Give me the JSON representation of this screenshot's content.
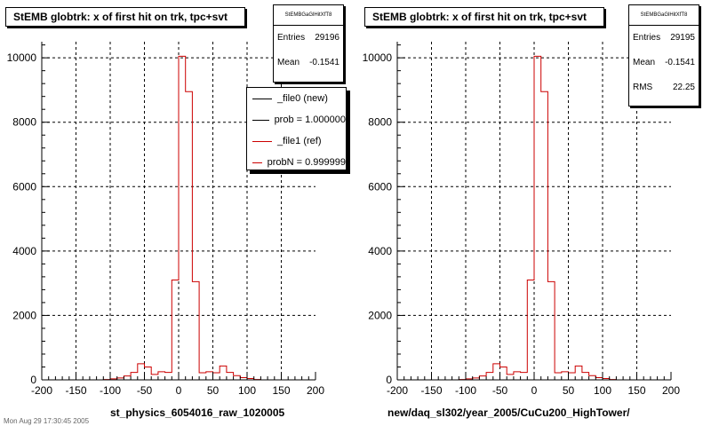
{
  "chart_data": [
    {
      "type": "histogram",
      "title": "StEMB globtrk: x of first hit on trk, tpc+svt",
      "xlabel": "st_physics_6054016_raw_1020005",
      "ylabel": "",
      "xlim": [
        -200,
        200
      ],
      "ylim": [
        0,
        10500
      ],
      "xticks": [
        -200,
        -150,
        -100,
        -50,
        0,
        50,
        100,
        150,
        200
      ],
      "yticks": [
        0,
        2000,
        4000,
        6000,
        8000,
        10000
      ],
      "grid": true,
      "stats": {
        "name": "StEMBGaGlHitXfT8",
        "entries_label": "Entries",
        "entries": "29196",
        "mean_label": "Mean",
        "mean": "-0.1541"
      },
      "legend": {
        "placement": "top-right",
        "entries": [
          {
            "label": "_file0 (new)",
            "color": "#000000"
          },
          {
            "label": "prob = 1.000000",
            "color": "#000000"
          },
          {
            "label": "_file1 (ref)",
            "color": "#cc0000"
          },
          {
            "label": "probN = 0.999999",
            "color": "#cc0000"
          }
        ]
      },
      "bin_width": 10,
      "series": [
        {
          "name": "_file1 (ref)",
          "color": "#cc0000",
          "bins_x_low": [
            -200,
            -190,
            -180,
            -170,
            -160,
            -150,
            -140,
            -130,
            -120,
            -110,
            -100,
            -90,
            -80,
            -70,
            -60,
            -50,
            -40,
            -30,
            -20,
            -10,
            0,
            10,
            20,
            30,
            40,
            50,
            60,
            70,
            80,
            90,
            100,
            110,
            120,
            130,
            140,
            150,
            160,
            170,
            180,
            190
          ],
          "values": [
            0,
            0,
            0,
            0,
            0,
            0,
            0,
            0,
            0,
            10,
            30,
            60,
            120,
            230,
            500,
            400,
            170,
            250,
            230,
            3100,
            10050,
            8950,
            3050,
            220,
            250,
            220,
            430,
            230,
            130,
            70,
            40,
            10,
            0,
            0,
            0,
            0,
            0,
            0,
            0,
            0
          ]
        }
      ]
    },
    {
      "type": "histogram",
      "title": "StEMB globtrk: x of first hit on trk, tpc+svt",
      "xlabel": "new/daq_sl302/year_2005/CuCu200_HighTower/",
      "ylabel": "",
      "xlim": [
        -200,
        200
      ],
      "ylim": [
        0,
        10500
      ],
      "xticks": [
        -200,
        -150,
        -100,
        -50,
        0,
        50,
        100,
        150,
        200
      ],
      "yticks": [
        0,
        2000,
        4000,
        6000,
        8000,
        10000
      ],
      "grid": true,
      "stats": {
        "name": "StEMBGaGlHitXfT8",
        "entries_label": "Entries",
        "entries": "29195",
        "mean_label": "Mean",
        "mean": "-0.1541",
        "rms_label": "RMS",
        "rms": "22.25"
      },
      "bin_width": 10,
      "series": [
        {
          "name": "",
          "color": "#cc0000",
          "bins_x_low": [
            -200,
            -190,
            -180,
            -170,
            -160,
            -150,
            -140,
            -130,
            -120,
            -110,
            -100,
            -90,
            -80,
            -70,
            -60,
            -50,
            -40,
            -30,
            -20,
            -10,
            0,
            10,
            20,
            30,
            40,
            50,
            60,
            70,
            80,
            90,
            100,
            110,
            120,
            130,
            140,
            150,
            160,
            170,
            180,
            190
          ],
          "values": [
            0,
            0,
            0,
            0,
            0,
            0,
            0,
            0,
            0,
            10,
            30,
            60,
            120,
            230,
            500,
            400,
            170,
            250,
            230,
            3100,
            10050,
            8950,
            3050,
            220,
            250,
            220,
            430,
            230,
            130,
            70,
            40,
            10,
            0,
            0,
            0,
            0,
            0,
            0,
            0,
            0
          ]
        }
      ]
    }
  ],
  "footer": "Mon Aug 29 17:30:45 2005"
}
